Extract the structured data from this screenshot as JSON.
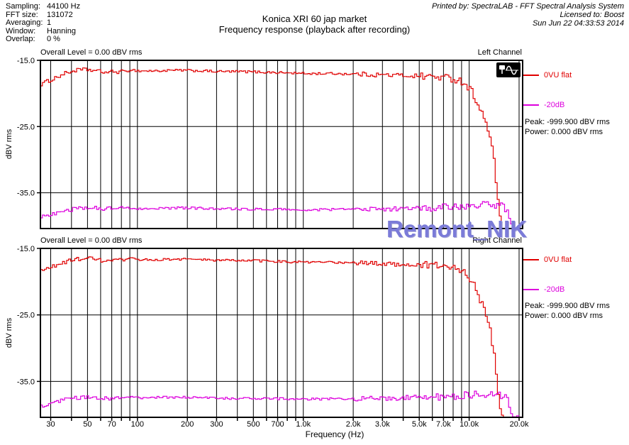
{
  "header": {
    "params": [
      {
        "label": "Sampling:",
        "value": "44100 Hz"
      },
      {
        "label": "FFT size:",
        "value": "131072"
      },
      {
        "label": "Averaging:",
        "value": "1"
      },
      {
        "label": "Window:",
        "value": "Hanning"
      },
      {
        "label": "Overlap:",
        "value": "0 %"
      }
    ],
    "title_line1": "Konica XRI 60 jap market",
    "title_line2": "Frequency response (playback after recording)",
    "printed_by": "Printed by: SpectraLAB - FFT Spectral Analysis System",
    "licensed_to": "Licensed to: Boost",
    "datetime": "Sun Jun 22 04:33:53 2014"
  },
  "watermark": {
    "text": "Remont_NIK",
    "color": "#7b7bd8"
  },
  "icons": {
    "logo": "sine-wave-meter-icon"
  },
  "chart_data": {
    "type": "line",
    "x_scale": "log",
    "xlabel": "Frequency (Hz)",
    "ylabel": "dBV rms",
    "x_range_hz": [
      26,
      21000
    ],
    "y_range_dbv": [
      -40.4,
      -15
    ],
    "grid": true,
    "x_gridlines_hz": [
      30,
      40,
      50,
      60,
      70,
      80,
      90,
      100,
      200,
      300,
      400,
      500,
      600,
      700,
      800,
      900,
      1000,
      2000,
      3000,
      4000,
      5000,
      6000,
      7000,
      8000,
      9000,
      10000,
      20000
    ],
    "y_gridlines_dbv": [
      -25,
      -35
    ],
    "x_tick_labels": [
      {
        "hz": 30,
        "label": "30"
      },
      {
        "hz": 50,
        "label": "50"
      },
      {
        "hz": 70,
        "label": "70"
      },
      {
        "hz": 100,
        "label": "100"
      },
      {
        "hz": 200,
        "label": "200"
      },
      {
        "hz": 300,
        "label": "300"
      },
      {
        "hz": 500,
        "label": "500"
      },
      {
        "hz": 700,
        "label": "700"
      },
      {
        "hz": 1000,
        "label": "1.0k"
      },
      {
        "hz": 2000,
        "label": "2.0k"
      },
      {
        "hz": 3000,
        "label": "3.0k"
      },
      {
        "hz": 5000,
        "label": "5.0k"
      },
      {
        "hz": 7000,
        "label": "7.0k"
      },
      {
        "hz": 10000,
        "label": "10.0k"
      },
      {
        "hz": 20000,
        "label": "20.0k"
      }
    ],
    "y_tick_labels": [
      {
        "dbv": -15,
        "label": "-15.0"
      },
      {
        "dbv": -25,
        "label": "-25.0"
      },
      {
        "dbv": -35,
        "label": "-35.0"
      }
    ],
    "charts": [
      {
        "channel": "Left Channel",
        "overall_level": "Overall Level = 0.00 dBV rms",
        "peak": "Peak: -999.900 dBV rms",
        "power": "Power: 0.000 dBV rms",
        "legend_position": "right",
        "series": [
          {
            "name": "0VU flat",
            "color": "#e00000",
            "points_hz_dbv": [
              [
                26,
                -18.6
              ],
              [
                30,
                -17.9
              ],
              [
                36,
                -17.0
              ],
              [
                42,
                -16.5
              ],
              [
                50,
                -16.4
              ],
              [
                58,
                -16.7
              ],
              [
                66,
                -16.8
              ],
              [
                75,
                -16.7
              ],
              [
                84,
                -16.7
              ],
              [
                90,
                -16.4
              ],
              [
                100,
                -16.6
              ],
              [
                130,
                -16.6
              ],
              [
                180,
                -16.5
              ],
              [
                240,
                -16.6
              ],
              [
                300,
                -16.7
              ],
              [
                420,
                -16.7
              ],
              [
                600,
                -16.8
              ],
              [
                800,
                -16.9
              ],
              [
                1000,
                -17.0
              ],
              [
                1500,
                -17.0
              ],
              [
                2200,
                -17.1
              ],
              [
                3000,
                -17.2
              ],
              [
                4200,
                -17.3
              ],
              [
                5500,
                -17.4
              ],
              [
                7000,
                -17.6
              ],
              [
                8000,
                -17.8
              ],
              [
                8800,
                -18.1
              ],
              [
                9500,
                -18.7
              ],
              [
                10200,
                -19.6
              ],
              [
                11000,
                -21.2
              ],
              [
                12000,
                -23.5
              ],
              [
                12800,
                -25.3
              ],
              [
                13400,
                -27.4
              ],
              [
                14000,
                -30.6
              ],
              [
                14400,
                -33.6
              ],
              [
                14800,
                -36.2
              ],
              [
                15200,
                -38.6
              ],
              [
                15600,
                -40.5
              ]
            ]
          },
          {
            "name": "-20dB",
            "color": "#dd00dd",
            "points_hz_dbv": [
              [
                26,
                -38.7
              ],
              [
                30,
                -38.2
              ],
              [
                36,
                -37.7
              ],
              [
                42,
                -37.4
              ],
              [
                50,
                -37.2
              ],
              [
                60,
                -37.4
              ],
              [
                70,
                -37.4
              ],
              [
                80,
                -37.3
              ],
              [
                90,
                -37.3
              ],
              [
                100,
                -37.4
              ],
              [
                140,
                -37.3
              ],
              [
                200,
                -37.3
              ],
              [
                300,
                -37.4
              ],
              [
                450,
                -37.5
              ],
              [
                700,
                -37.5
              ],
              [
                1000,
                -37.6
              ],
              [
                1600,
                -37.5
              ],
              [
                2400,
                -37.5
              ],
              [
                3500,
                -37.4
              ],
              [
                5000,
                -37.3
              ],
              [
                7000,
                -37.2
              ],
              [
                9000,
                -37.0
              ],
              [
                11000,
                -36.9
              ],
              [
                13000,
                -36.8
              ],
              [
                14500,
                -36.8
              ],
              [
                15500,
                -37.0
              ],
              [
                16300,
                -37.5
              ],
              [
                17000,
                -38.3
              ],
              [
                17600,
                -39.3
              ],
              [
                18100,
                -40.3
              ],
              [
                18400,
                -40.5
              ],
              [
                19000,
                -40.3
              ],
              [
                19400,
                -40.5
              ],
              [
                21000,
                -40.5
              ]
            ]
          }
        ]
      },
      {
        "channel": "Right Channel",
        "overall_level": "Overall Level = 0.00 dBV rms",
        "peak": "Peak: -999.900 dBV rms",
        "power": "Power: 0.000 dBV rms",
        "legend_position": "right",
        "series": [
          {
            "name": "0VU flat",
            "color": "#e00000",
            "points_hz_dbv": [
              [
                26,
                -18.4
              ],
              [
                30,
                -17.8
              ],
              [
                36,
                -17.1
              ],
              [
                42,
                -16.6
              ],
              [
                50,
                -16.5
              ],
              [
                58,
                -16.8
              ],
              [
                66,
                -16.9
              ],
              [
                75,
                -16.8
              ],
              [
                84,
                -16.8
              ],
              [
                90,
                -16.5
              ],
              [
                100,
                -16.7
              ],
              [
                130,
                -16.7
              ],
              [
                180,
                -16.6
              ],
              [
                240,
                -16.7
              ],
              [
                300,
                -16.8
              ],
              [
                420,
                -16.8
              ],
              [
                600,
                -16.9
              ],
              [
                800,
                -17.0
              ],
              [
                1000,
                -17.1
              ],
              [
                1500,
                -17.1
              ],
              [
                2200,
                -17.2
              ],
              [
                3000,
                -17.3
              ],
              [
                4200,
                -17.4
              ],
              [
                5500,
                -17.5
              ],
              [
                7000,
                -17.7
              ],
              [
                8000,
                -17.9
              ],
              [
                8800,
                -18.2
              ],
              [
                9500,
                -18.8
              ],
              [
                10200,
                -19.8
              ],
              [
                11000,
                -21.5
              ],
              [
                12000,
                -23.9
              ],
              [
                12800,
                -25.8
              ],
              [
                13400,
                -28.0
              ],
              [
                14000,
                -31.2
              ],
              [
                14400,
                -34.2
              ],
              [
                14800,
                -36.8
              ],
              [
                15300,
                -39.2
              ],
              [
                15800,
                -40.5
              ],
              [
                18100,
                -40.5
              ],
              [
                18300,
                -39.6
              ],
              [
                18500,
                -40.5
              ]
            ]
          },
          {
            "name": "-20dB",
            "color": "#dd00dd",
            "points_hz_dbv": [
              [
                26,
                -38.8
              ],
              [
                30,
                -38.3
              ],
              [
                36,
                -37.8
              ],
              [
                42,
                -37.5
              ],
              [
                50,
                -37.3
              ],
              [
                60,
                -37.5
              ],
              [
                70,
                -37.5
              ],
              [
                80,
                -37.4
              ],
              [
                90,
                -37.4
              ],
              [
                100,
                -37.5
              ],
              [
                140,
                -37.4
              ],
              [
                200,
                -37.4
              ],
              [
                300,
                -37.5
              ],
              [
                450,
                -37.6
              ],
              [
                700,
                -37.6
              ],
              [
                1000,
                -37.7
              ],
              [
                1600,
                -37.6
              ],
              [
                2400,
                -37.6
              ],
              [
                3500,
                -37.5
              ],
              [
                5000,
                -37.4
              ],
              [
                7000,
                -37.3
              ],
              [
                9000,
                -37.1
              ],
              [
                11000,
                -37.0
              ],
              [
                13000,
                -36.9
              ],
              [
                14500,
                -36.9
              ],
              [
                15500,
                -37.1
              ],
              [
                16500,
                -37.6
              ],
              [
                17200,
                -38.4
              ],
              [
                17800,
                -39.4
              ],
              [
                18300,
                -40.4
              ],
              [
                18600,
                -40.5
              ],
              [
                19200,
                -40.2
              ],
              [
                19600,
                -39.9
              ],
              [
                19900,
                -40.5
              ],
              [
                21000,
                -40.5
              ]
            ]
          }
        ]
      }
    ]
  }
}
